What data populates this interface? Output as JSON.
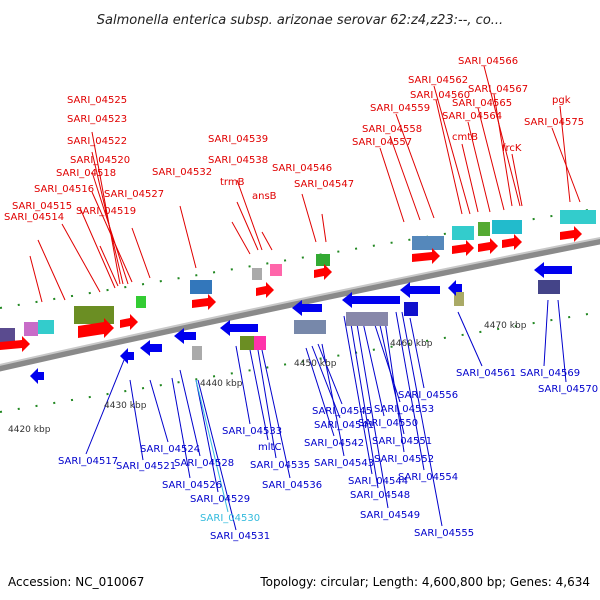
{
  "title": "Salmonella enterica subsp. arizonae serovar 62:z4,z23:--, co...",
  "footer": {
    "accession": "Accession: NC_010067",
    "topology": "Topology: circular; Length: 4,600,800 bp; Genes: 4,634"
  },
  "scale_labels": [
    "4420 kbp",
    "4430 kbp",
    "4440 kbp",
    "4450 kbp",
    "4460 kbp",
    "4470 kbp"
  ],
  "forward_genes": [
    "SARI_04525",
    "SARI_04523",
    "SARI_04522",
    "SARI_04520",
    "SARI_04518",
    "SARI_04516",
    "SARI_04515",
    "SARI_04514",
    "SARI_04519",
    "SARI_04527",
    "SARI_04532",
    "SARI_04539",
    "SARI_04538",
    "trmB",
    "ansB",
    "SARI_04546",
    "SARI_04547",
    "SARI_04566",
    "SARI_04562",
    "SARI_04560",
    "SARI_04567",
    "SARI_04559",
    "SARI_04565",
    "SARI_04564",
    "SARI_04558",
    "SARI_04557",
    "cmtB",
    "pgk",
    "SARI_04575",
    "frcK"
  ],
  "reverse_genes": [
    "SARI_04561",
    "SARI_04569",
    "SARI_04570",
    "SARI_04556",
    "SARI_04545",
    "SARI_04553",
    "SARI_04541",
    "SARI_04550",
    "SARI_04542",
    "SARI_04551",
    "SARI_04533",
    "mltC",
    "SARI_04543",
    "SARI_04552",
    "SARI_04535",
    "SARI_04544",
    "SARI_04554",
    "SARI_04536",
    "SARI_04548",
    "SARI_04549",
    "SARI_04555",
    "SARI_04517",
    "SARI_04524",
    "SARI_04521",
    "SARI_04528",
    "SARI_04526",
    "SARI_04529",
    "SARI_04530",
    "SARI_04531"
  ],
  "colors": {
    "forward_label": "#e00000",
    "reverse_label": "#0000cc",
    "highlight_label": "#33bbdd",
    "backbone": "#8a8a8a",
    "tick": "#228822"
  }
}
